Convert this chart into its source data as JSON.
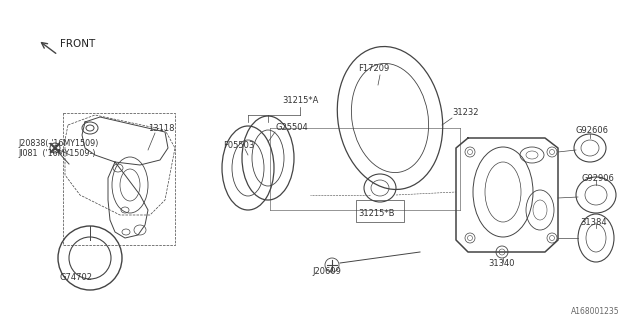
{
  "bg_color": "#ffffff",
  "line_color": "#444444",
  "text_color": "#333333",
  "watermark": "A168001235",
  "front_label": "FRONT",
  "parts": [
    {
      "id": "G74702"
    },
    {
      "id": "G92606"
    },
    {
      "id": "G92906"
    },
    {
      "id": "31384"
    },
    {
      "id": "31340"
    },
    {
      "id": "J20609"
    },
    {
      "id": "31215*B"
    },
    {
      "id": "31215*A"
    },
    {
      "id": "G25504"
    },
    {
      "id": "F05503"
    },
    {
      "id": "F17209"
    },
    {
      "id": "31232"
    },
    {
      "id": "13118"
    },
    {
      "id": "J20838(-'16MY1509)"
    },
    {
      "id": "JI081  ('16MY1509-)"
    }
  ]
}
